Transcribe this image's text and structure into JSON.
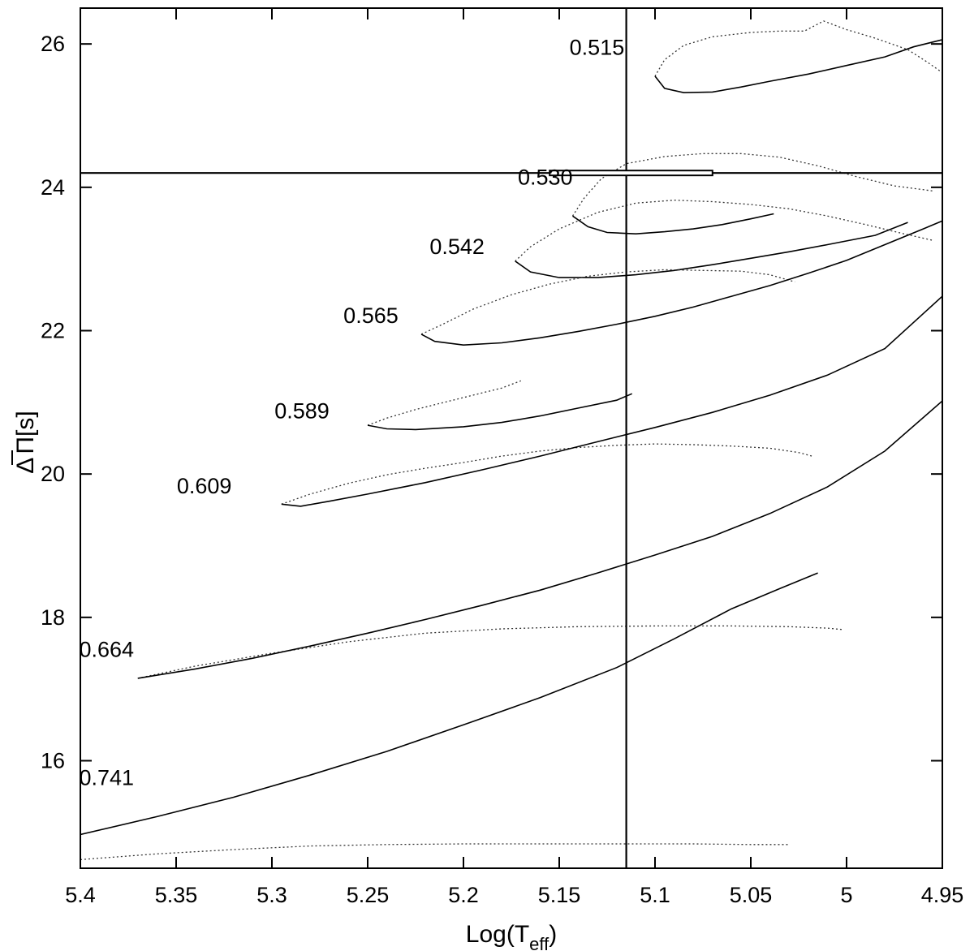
{
  "chart_data": {
    "type": "line",
    "xlabel": "Log(T",
    "xlabel_sub": "eff",
    "xlabel_close": ")",
    "ylabel_delta": "Δ",
    "ylabel_pi": "Π",
    "ylabel_unit": "[s]",
    "xlim": [
      5.4,
      4.95
    ],
    "ylim": [
      14.5,
      26.5
    ],
    "x_ticks": [
      5.4,
      5.35,
      5.3,
      5.25,
      5.2,
      5.15,
      5.1,
      5.05,
      5.0,
      4.95
    ],
    "x_tick_labels": [
      "5.4",
      "5.35",
      "5.3",
      "5.25",
      "5.2",
      "5.15",
      "5.1",
      "5.05",
      "5",
      "4.95"
    ],
    "y_ticks": [
      16,
      18,
      20,
      22,
      24,
      26
    ],
    "y_tick_labels": [
      "16",
      "18",
      "20",
      "22",
      "24",
      "26"
    ],
    "observed": {
      "log_teff": 5.115,
      "period_spacing": 24.2,
      "log_teff_range": [
        5.155,
        5.07
      ]
    },
    "series": [
      {
        "name": "0.515",
        "label_at": [
          5.116,
          25.85
        ],
        "solid": [
          [
            5.1,
            25.55
          ],
          [
            5.095,
            25.38
          ],
          [
            5.085,
            25.32
          ],
          [
            5.07,
            25.33
          ],
          [
            5.055,
            25.4
          ],
          [
            5.04,
            25.48
          ],
          [
            5.02,
            25.58
          ],
          [
            5.0,
            25.7
          ],
          [
            4.98,
            25.82
          ],
          [
            4.965,
            25.96
          ],
          [
            4.95,
            26.06
          ]
        ],
        "dotted": [
          [
            5.1,
            25.55
          ],
          [
            5.095,
            25.78
          ],
          [
            5.085,
            25.98
          ],
          [
            5.07,
            26.1
          ],
          [
            5.05,
            26.16
          ],
          [
            5.035,
            26.18
          ],
          [
            5.022,
            26.18
          ],
          [
            5.012,
            26.32
          ],
          [
            5.0,
            26.2
          ],
          [
            4.985,
            26.08
          ],
          [
            4.968,
            25.92
          ],
          [
            4.958,
            25.75
          ],
          [
            4.95,
            25.6
          ]
        ]
      },
      {
        "name": "0.530",
        "label_at": [
          5.143,
          24.04
        ],
        "solid": [
          [
            5.143,
            23.6
          ],
          [
            5.135,
            23.45
          ],
          [
            5.125,
            23.37
          ],
          [
            5.11,
            23.35
          ],
          [
            5.095,
            23.38
          ],
          [
            5.08,
            23.42
          ],
          [
            5.065,
            23.48
          ],
          [
            5.05,
            23.56
          ],
          [
            5.038,
            23.63
          ]
        ],
        "dotted": [
          [
            5.143,
            23.6
          ],
          [
            5.137,
            23.85
          ],
          [
            5.128,
            24.12
          ],
          [
            5.115,
            24.33
          ],
          [
            5.095,
            24.43
          ],
          [
            5.075,
            24.47
          ],
          [
            5.055,
            24.47
          ],
          [
            5.035,
            24.42
          ],
          [
            5.015,
            24.3
          ],
          [
            4.995,
            24.15
          ],
          [
            4.975,
            24.02
          ],
          [
            4.955,
            23.95
          ]
        ]
      },
      {
        "name": "0.542",
        "label_at": [
          5.189,
          23.07
        ],
        "solid": [
          [
            5.173,
            22.97
          ],
          [
            5.165,
            22.82
          ],
          [
            5.15,
            22.74
          ],
          [
            5.13,
            22.74
          ],
          [
            5.11,
            22.78
          ],
          [
            5.09,
            22.84
          ],
          [
            5.07,
            22.92
          ],
          [
            5.05,
            23.01
          ],
          [
            5.03,
            23.1
          ],
          [
            5.01,
            23.2
          ],
          [
            4.985,
            23.33
          ],
          [
            4.968,
            23.51
          ]
        ],
        "dotted": [
          [
            5.173,
            22.97
          ],
          [
            5.165,
            23.17
          ],
          [
            5.15,
            23.42
          ],
          [
            5.13,
            23.65
          ],
          [
            5.11,
            23.78
          ],
          [
            5.09,
            23.82
          ],
          [
            5.07,
            23.8
          ],
          [
            5.05,
            23.76
          ],
          [
            5.03,
            23.7
          ],
          [
            5.01,
            23.6
          ],
          [
            4.99,
            23.48
          ],
          [
            4.97,
            23.35
          ],
          [
            4.955,
            23.26
          ]
        ]
      },
      {
        "name": "0.565",
        "label_at": [
          5.234,
          22.11
        ],
        "solid": [
          [
            5.222,
            21.95
          ],
          [
            5.215,
            21.85
          ],
          [
            5.2,
            21.8
          ],
          [
            5.18,
            21.83
          ],
          [
            5.16,
            21.9
          ],
          [
            5.14,
            21.99
          ],
          [
            5.12,
            22.09
          ],
          [
            5.1,
            22.2
          ],
          [
            5.08,
            22.33
          ],
          [
            5.06,
            22.48
          ],
          [
            5.04,
            22.63
          ],
          [
            5.02,
            22.8
          ],
          [
            5.0,
            22.98
          ],
          [
            4.98,
            23.2
          ],
          [
            4.96,
            23.42
          ],
          [
            4.95,
            23.53
          ]
        ],
        "dotted": [
          [
            5.222,
            21.95
          ],
          [
            5.21,
            22.1
          ],
          [
            5.195,
            22.3
          ],
          [
            5.175,
            22.5
          ],
          [
            5.155,
            22.65
          ],
          [
            5.135,
            22.76
          ],
          [
            5.115,
            22.82
          ],
          [
            5.095,
            22.85
          ],
          [
            5.075,
            22.84
          ],
          [
            5.055,
            22.83
          ],
          [
            5.04,
            22.78
          ],
          [
            5.027,
            22.68
          ]
        ]
      },
      {
        "name": "0.589",
        "label_at": [
          5.27,
          20.78
        ],
        "solid": [
          [
            5.25,
            20.68
          ],
          [
            5.24,
            20.63
          ],
          [
            5.225,
            20.62
          ],
          [
            5.2,
            20.66
          ],
          [
            5.18,
            20.72
          ],
          [
            5.16,
            20.81
          ],
          [
            5.14,
            20.92
          ],
          [
            5.12,
            21.03
          ],
          [
            5.112,
            21.12
          ]
        ],
        "dotted": [
          [
            5.25,
            20.68
          ],
          [
            5.24,
            20.78
          ],
          [
            5.225,
            20.9
          ],
          [
            5.21,
            21.0
          ],
          [
            5.195,
            21.1
          ],
          [
            5.18,
            21.2
          ],
          [
            5.17,
            21.3
          ]
        ]
      },
      {
        "name": "0.609",
        "label_at": [
          5.321,
          19.73
        ],
        "solid": [
          [
            5.295,
            19.58
          ],
          [
            5.285,
            19.55
          ],
          [
            5.27,
            19.62
          ],
          [
            5.25,
            19.72
          ],
          [
            5.22,
            19.88
          ],
          [
            5.19,
            20.06
          ],
          [
            5.16,
            20.25
          ],
          [
            5.13,
            20.45
          ],
          [
            5.1,
            20.65
          ],
          [
            5.07,
            20.86
          ],
          [
            5.04,
            21.1
          ],
          [
            5.01,
            21.38
          ],
          [
            4.98,
            21.75
          ],
          [
            4.95,
            22.48
          ]
        ],
        "dotted": [
          [
            5.295,
            19.58
          ],
          [
            5.28,
            19.72
          ],
          [
            5.26,
            19.87
          ],
          [
            5.24,
            19.99
          ],
          [
            5.22,
            20.08
          ],
          [
            5.2,
            20.16
          ],
          [
            5.18,
            20.25
          ],
          [
            5.16,
            20.32
          ],
          [
            5.14,
            20.37
          ],
          [
            5.12,
            20.4
          ],
          [
            5.1,
            20.42
          ],
          [
            5.08,
            20.41
          ],
          [
            5.06,
            20.39
          ],
          [
            5.04,
            20.36
          ],
          [
            5.025,
            20.3
          ],
          [
            5.018,
            20.25
          ]
        ]
      },
      {
        "name": "0.664",
        "label_at": [
          5.372,
          17.45
        ],
        "solid": [
          [
            5.37,
            17.15
          ],
          [
            5.34,
            17.28
          ],
          [
            5.31,
            17.43
          ],
          [
            5.28,
            17.6
          ],
          [
            5.25,
            17.78
          ],
          [
            5.22,
            17.97
          ],
          [
            5.19,
            18.17
          ],
          [
            5.16,
            18.38
          ],
          [
            5.13,
            18.62
          ],
          [
            5.1,
            18.87
          ],
          [
            5.07,
            19.13
          ],
          [
            5.04,
            19.45
          ],
          [
            5.01,
            19.82
          ],
          [
            4.98,
            20.32
          ],
          [
            4.95,
            21.02
          ]
        ],
        "dotted": [
          [
            5.37,
            17.15
          ],
          [
            5.34,
            17.32
          ],
          [
            5.3,
            17.5
          ],
          [
            5.26,
            17.66
          ],
          [
            5.22,
            17.78
          ],
          [
            5.18,
            17.84
          ],
          [
            5.14,
            17.87
          ],
          [
            5.1,
            17.88
          ],
          [
            5.06,
            17.88
          ],
          [
            5.03,
            17.87
          ],
          [
            5.01,
            17.85
          ],
          [
            5.002,
            17.83
          ]
        ]
      },
      {
        "name": "0.741",
        "label_at": [
          5.372,
          15.66
        ],
        "solid": [
          [
            5.4,
            14.97
          ],
          [
            5.36,
            15.22
          ],
          [
            5.32,
            15.49
          ],
          [
            5.28,
            15.8
          ],
          [
            5.24,
            16.13
          ],
          [
            5.2,
            16.5
          ],
          [
            5.16,
            16.88
          ],
          [
            5.12,
            17.3
          ],
          [
            5.09,
            17.7
          ],
          [
            5.06,
            18.12
          ],
          [
            5.035,
            18.4
          ],
          [
            5.015,
            18.62
          ]
        ],
        "dotted": [
          [
            5.4,
            14.62
          ],
          [
            5.36,
            14.7
          ],
          [
            5.32,
            14.76
          ],
          [
            5.28,
            14.81
          ],
          [
            5.24,
            14.83
          ],
          [
            5.2,
            14.84
          ],
          [
            5.16,
            14.84
          ],
          [
            5.12,
            14.84
          ],
          [
            5.08,
            14.84
          ],
          [
            5.05,
            14.83
          ],
          [
            5.03,
            14.83
          ]
        ]
      }
    ]
  }
}
